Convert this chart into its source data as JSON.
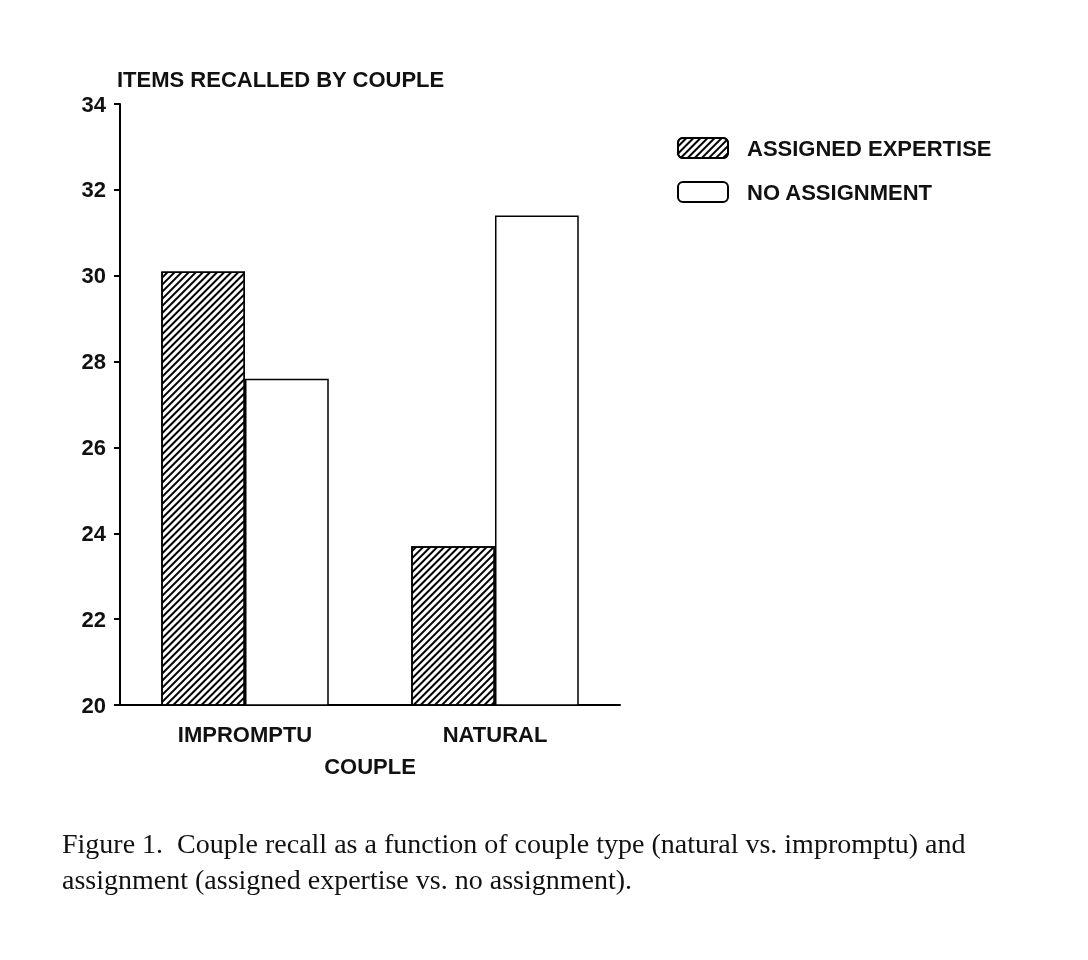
{
  "chart_data": {
    "type": "bar",
    "xlabel": "COUPLE",
    "ylabel": "ITEMS RECALLED BY COUPLE",
    "categories": [
      "IMPROMPTU",
      "NATURAL"
    ],
    "series": [
      {
        "name": "ASSIGNED EXPERTISE",
        "color": "#000000",
        "values": [
          30.1,
          23.7
        ]
      },
      {
        "name": "NO ASSIGNMENT",
        "color": "#ffffff",
        "values": [
          27.6,
          31.4
        ]
      }
    ],
    "ylim": [
      20,
      34
    ],
    "yticks": [
      20,
      22,
      24,
      26,
      28,
      30,
      32,
      34
    ],
    "legend": "top right",
    "annotations": [
      "Figure 1.  Couple recall as a function of couple type (natural vs. impromptu) and assignment (assigned expertise vs. no assignment)."
    ]
  }
}
